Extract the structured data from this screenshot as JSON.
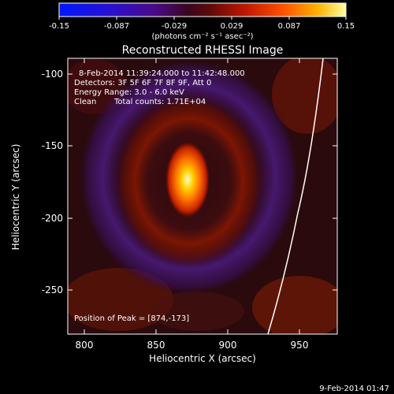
{
  "colorbar": {
    "ticks": [
      "-0.15",
      "-0.087",
      "-0.029",
      "0.029",
      "0.087",
      "0.15"
    ],
    "unit_label": "(photons cm⁻² s⁻¹ asec⁻²)"
  },
  "title": "Reconstructed RHESSI Image",
  "annotations": {
    "time_range": "8-Feb-2014 11:39:24.000 to 11:42:48.000",
    "detectors": "Detectors: 3F 5F 6F 7F 8F 9F, Att 0",
    "energy": "Energy Range: 3.0 - 6.0 keV",
    "method": "Clean",
    "counts": "Total counts: 1.71E+04",
    "peak": "Position of Peak = [874,-173]"
  },
  "axes": {
    "xlabel": "Heliocentric X (arcsec)",
    "ylabel": "Heliocentric Y (arcsec)",
    "xticks": [
      "800",
      "850",
      "900",
      "950"
    ],
    "yticks": [
      "-100",
      "-150",
      "-200",
      "-250"
    ]
  },
  "footer_timestamp": "9-Feb-2014 01:47"
}
